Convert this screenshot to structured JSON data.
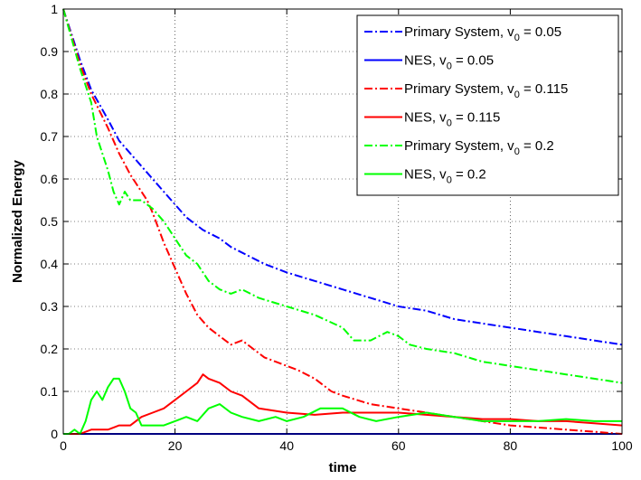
{
  "chart_data": {
    "type": "line",
    "xlabel": "time",
    "ylabel": "Normalized Energy",
    "xlim": [
      0,
      100
    ],
    "ylim": [
      0,
      1
    ],
    "x_ticks": [
      "0",
      "20",
      "40",
      "60",
      "80",
      "100"
    ],
    "y_ticks": [
      "0",
      "0.1",
      "0.2",
      "0.3",
      "0.4",
      "0.5",
      "0.6",
      "0.7",
      "0.8",
      "0.9",
      "1"
    ],
    "grid": true,
    "legend_position": "top-right",
    "series": [
      {
        "name": "Primary System, v0 = 0.05",
        "name_parts": [
          "Primary System, v",
          "0",
          " = 0.05"
        ],
        "color": "#0000ff",
        "style": "dashdot",
        "x": [
          0,
          3,
          5,
          8,
          10,
          12,
          14,
          16,
          18,
          20,
          22,
          25,
          28,
          30,
          33,
          36,
          40,
          45,
          50,
          55,
          60,
          65,
          70,
          75,
          80,
          85,
          90,
          95,
          100
        ],
        "y": [
          1.0,
          0.88,
          0.81,
          0.74,
          0.69,
          0.66,
          0.63,
          0.6,
          0.57,
          0.54,
          0.51,
          0.48,
          0.46,
          0.44,
          0.42,
          0.4,
          0.38,
          0.36,
          0.34,
          0.32,
          0.3,
          0.29,
          0.27,
          0.26,
          0.25,
          0.24,
          0.23,
          0.22,
          0.21
        ]
      },
      {
        "name": "NES, v0 = 0.05",
        "name_parts": [
          "NES, v",
          "0",
          " = 0.05"
        ],
        "color": "#0000ff",
        "style": "solid",
        "x": [
          0,
          20,
          40,
          60,
          80,
          100
        ],
        "y": [
          0.0,
          0.0,
          0.0,
          0.0,
          0.0,
          0.0
        ]
      },
      {
        "name": "Primary System, v0 = 0.115",
        "name_parts": [
          "Primary System, v",
          "0",
          " = 0.115"
        ],
        "color": "#ff0000",
        "style": "dashdot",
        "x": [
          0,
          3,
          5,
          8,
          10,
          12,
          14,
          15,
          16,
          18,
          20,
          22,
          24,
          26,
          28,
          30,
          32,
          34,
          36,
          38,
          40,
          42,
          45,
          48,
          50,
          55,
          60,
          65,
          70,
          75,
          80,
          85,
          90,
          95,
          100
        ],
        "y": [
          1.0,
          0.87,
          0.8,
          0.72,
          0.66,
          0.61,
          0.57,
          0.55,
          0.52,
          0.45,
          0.39,
          0.33,
          0.28,
          0.25,
          0.23,
          0.21,
          0.22,
          0.2,
          0.18,
          0.17,
          0.16,
          0.15,
          0.13,
          0.1,
          0.09,
          0.07,
          0.06,
          0.05,
          0.04,
          0.03,
          0.02,
          0.015,
          0.01,
          0.005,
          0.0
        ]
      },
      {
        "name": "NES, v0 = 0.115",
        "name_parts": [
          "NES, v",
          "0",
          " = 0.115"
        ],
        "color": "#ff0000",
        "style": "solid",
        "x": [
          0,
          3,
          5,
          6,
          8,
          10,
          12,
          14,
          16,
          18,
          20,
          22,
          24,
          25,
          26,
          28,
          30,
          32,
          35,
          40,
          45,
          50,
          55,
          60,
          65,
          70,
          75,
          80,
          85,
          90,
          95,
          100
        ],
        "y": [
          0.0,
          0.0,
          0.01,
          0.01,
          0.01,
          0.02,
          0.02,
          0.04,
          0.05,
          0.06,
          0.08,
          0.1,
          0.12,
          0.14,
          0.13,
          0.12,
          0.1,
          0.09,
          0.06,
          0.05,
          0.045,
          0.05,
          0.05,
          0.05,
          0.045,
          0.04,
          0.035,
          0.035,
          0.03,
          0.03,
          0.025,
          0.02
        ]
      },
      {
        "name": "Primary System, v0 = 0.2",
        "name_parts": [
          "Primary System, v",
          "0",
          " = 0.2"
        ],
        "color": "#00ff00",
        "style": "dashdot",
        "x": [
          0,
          3,
          5,
          6,
          8,
          9,
          10,
          11,
          12,
          14,
          16,
          18,
          20,
          22,
          24,
          26,
          28,
          30,
          32,
          35,
          40,
          45,
          50,
          52,
          55,
          58,
          60,
          62,
          65,
          70,
          75,
          80,
          85,
          90,
          95,
          100
        ],
        "y": [
          1.0,
          0.86,
          0.78,
          0.7,
          0.62,
          0.57,
          0.54,
          0.57,
          0.55,
          0.55,
          0.53,
          0.5,
          0.46,
          0.42,
          0.4,
          0.36,
          0.34,
          0.33,
          0.34,
          0.32,
          0.3,
          0.28,
          0.25,
          0.22,
          0.22,
          0.24,
          0.23,
          0.21,
          0.2,
          0.19,
          0.17,
          0.16,
          0.15,
          0.14,
          0.13,
          0.12
        ]
      },
      {
        "name": "NES, v0 = 0.2",
        "name_parts": [
          "NES, v",
          "0",
          " = 0.2"
        ],
        "color": "#00ff00",
        "style": "solid",
        "x": [
          0,
          1,
          2,
          3,
          4,
          5,
          6,
          7,
          8,
          9,
          10,
          11,
          12,
          13,
          14,
          15,
          16,
          18,
          20,
          22,
          24,
          26,
          28,
          30,
          32,
          35,
          38,
          40,
          43,
          46,
          50,
          53,
          56,
          60,
          65,
          70,
          75,
          80,
          85,
          90,
          95,
          100
        ],
        "y": [
          0.0,
          0.0,
          0.01,
          0.0,
          0.03,
          0.08,
          0.1,
          0.08,
          0.11,
          0.13,
          0.13,
          0.1,
          0.06,
          0.05,
          0.02,
          0.02,
          0.02,
          0.02,
          0.03,
          0.04,
          0.03,
          0.06,
          0.07,
          0.05,
          0.04,
          0.03,
          0.04,
          0.03,
          0.04,
          0.06,
          0.06,
          0.04,
          0.03,
          0.04,
          0.05,
          0.04,
          0.03,
          0.03,
          0.03,
          0.035,
          0.03,
          0.03
        ]
      }
    ]
  }
}
